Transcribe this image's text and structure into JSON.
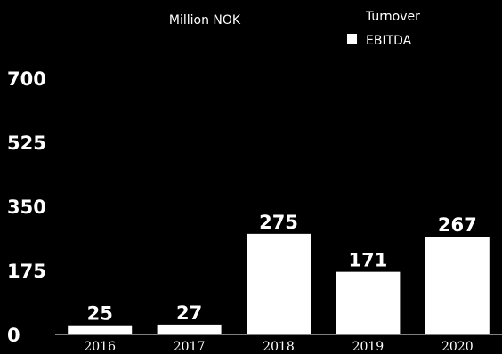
{
  "chart_data": {
    "type": "bar",
    "unit_label": "Million NOK",
    "categories": [
      "2016",
      "2017",
      "2018",
      "2019",
      "2020"
    ],
    "series": [
      {
        "name": "EBITDA",
        "values": [
          25,
          27,
          275,
          171,
          267
        ],
        "color": "#ffffff"
      }
    ],
    "legend": [
      {
        "label": "Turnover",
        "swatch": false
      },
      {
        "label": "EBITDA",
        "swatch": true,
        "color": "#ffffff"
      }
    ],
    "yticks": [
      0,
      175,
      350,
      525,
      700
    ],
    "ylim": [
      0,
      700
    ],
    "data_labels": [
      "25",
      "27",
      "275",
      "171",
      "267"
    ],
    "grid": false,
    "legend_position": "top-right",
    "colors": {
      "background": "#000000",
      "bars": "#ffffff",
      "text": "#ffffff"
    }
  }
}
